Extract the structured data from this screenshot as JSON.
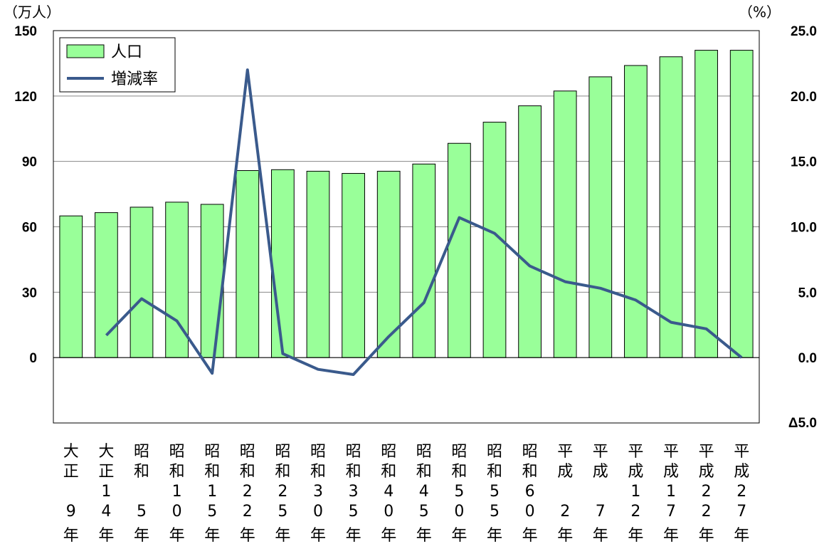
{
  "chart_data": {
    "type": "bar",
    "categories": [
      [
        "大",
        "正",
        "",
        "9",
        "年"
      ],
      [
        "大",
        "正",
        "1",
        "4",
        "年"
      ],
      [
        "昭",
        "和",
        "",
        "5",
        "年"
      ],
      [
        "昭",
        "和",
        "1",
        "0",
        "年"
      ],
      [
        "昭",
        "和",
        "1",
        "5",
        "年"
      ],
      [
        "昭",
        "和",
        "2",
        "2",
        "年"
      ],
      [
        "昭",
        "和",
        "2",
        "5",
        "年"
      ],
      [
        "昭",
        "和",
        "3",
        "0",
        "年"
      ],
      [
        "昭",
        "和",
        "3",
        "5",
        "年"
      ],
      [
        "昭",
        "和",
        "4",
        "0",
        "年"
      ],
      [
        "昭",
        "和",
        "4",
        "5",
        "年"
      ],
      [
        "昭",
        "和",
        "5",
        "0",
        "年"
      ],
      [
        "昭",
        "和",
        "5",
        "5",
        "年"
      ],
      [
        "昭",
        "和",
        "6",
        "0",
        "年"
      ],
      [
        "平",
        "成",
        "",
        "2",
        "年"
      ],
      [
        "平",
        "成",
        "",
        "7",
        "年"
      ],
      [
        "平",
        "成",
        "1",
        "2",
        "年"
      ],
      [
        "平",
        "成",
        "1",
        "7",
        "年"
      ],
      [
        "平",
        "成",
        "2",
        "2",
        "年"
      ],
      [
        "平",
        "成",
        "2",
        "7",
        "年"
      ]
    ],
    "series": [
      {
        "name": "人口",
        "type": "bar",
        "axis": "left",
        "color": "#99ff99",
        "values": [
          65,
          66.5,
          69,
          71.3,
          70.3,
          85.8,
          86.2,
          85.5,
          84.5,
          85.5,
          88.8,
          98.3,
          108,
          115.5,
          122.3,
          128.8,
          134,
          138,
          141,
          141
        ]
      },
      {
        "name": "増減率",
        "type": "line",
        "axis": "right",
        "color": "#3a5a8c",
        "values": [
          null,
          1.7,
          4.5,
          2.8,
          -1.2,
          22,
          0.3,
          -0.9,
          -1.3,
          1.6,
          4.2,
          10.7,
          9.5,
          7.0,
          5.8,
          5.3,
          4.4,
          2.7,
          2.2,
          0.0
        ]
      }
    ],
    "y_left": {
      "unit": "（万人）",
      "ticks": [
        "0",
        "30",
        "60",
        "90",
        "120",
        "150"
      ],
      "tick_values": [
        0,
        30,
        60,
        90,
        120,
        150
      ],
      "range": [
        -30,
        150
      ]
    },
    "y_right": {
      "unit": "（%）",
      "ticks": [
        "0.0",
        "5.0",
        "10.0",
        "15.0",
        "20.0",
        "25.0"
      ],
      "tick_values": [
        0,
        5,
        10,
        15,
        20,
        25
      ],
      "negative_label": "Δ5.0",
      "range": [
        -5,
        25
      ]
    },
    "grid": true,
    "legend": "top-left"
  }
}
